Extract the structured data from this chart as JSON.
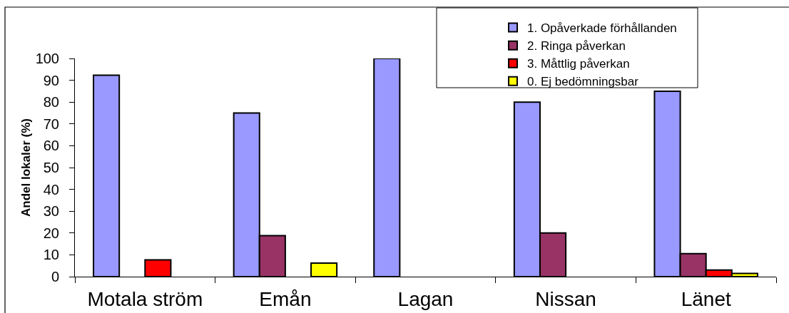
{
  "chart_data": {
    "type": "bar",
    "ylabel": "Andel lokaler (%)",
    "categories": [
      "Motala ström",
      "Emån",
      "Lagan",
      "Nissan",
      "Länet"
    ],
    "series": [
      {
        "name": "1. Opåverkade förhållanden",
        "color": "#9999ff",
        "values": [
          92.3,
          75,
          100,
          80,
          85
        ]
      },
      {
        "name": "2. Ringa påverkan",
        "color": "#993366",
        "values": [
          null,
          18.8,
          null,
          20,
          10.5
        ]
      },
      {
        "name": "3. Måttlig påverkan",
        "color": "#ff0000",
        "values": [
          7.7,
          null,
          null,
          null,
          3
        ]
      },
      {
        "name": "0. Ej bedömningsbar",
        "color": "#ffff00",
        "values": [
          null,
          6.2,
          null,
          null,
          1.5
        ]
      }
    ],
    "ylim": [
      0,
      100
    ],
    "yticks": [
      0,
      10,
      20,
      30,
      40,
      50,
      60,
      70,
      80,
      90,
      100
    ],
    "legend": "top right"
  }
}
